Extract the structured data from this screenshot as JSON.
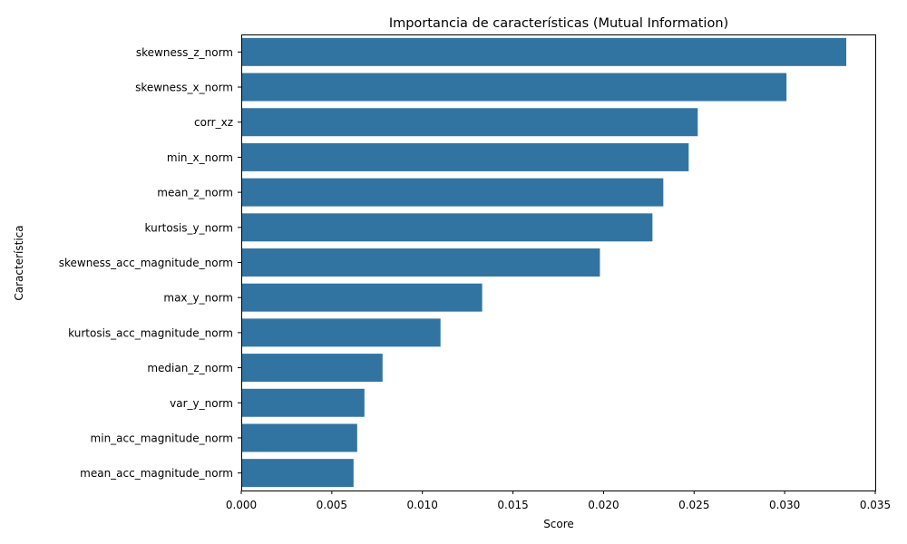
{
  "chart_data": {
    "type": "bar",
    "orientation": "horizontal",
    "title": "Importancia de características (Mutual Information)",
    "xlabel": "Score",
    "ylabel": "Característica",
    "xlim": [
      0,
      0.035
    ],
    "xticks": [
      "0.000",
      "0.005",
      "0.010",
      "0.015",
      "0.020",
      "0.025",
      "0.030",
      "0.035"
    ],
    "grid": false,
    "bar_color": "#3274a1",
    "categories": [
      "skewness_z_norm",
      "skewness_x_norm",
      "corr_xz",
      "min_x_norm",
      "mean_z_norm",
      "kurtosis_y_norm",
      "skewness_acc_magnitude_norm",
      "max_y_norm",
      "kurtosis_acc_magnitude_norm",
      "median_z_norm",
      "var_y_norm",
      "min_acc_magnitude_norm",
      "mean_acc_magnitude_norm"
    ],
    "values": [
      0.0334,
      0.0301,
      0.0252,
      0.0247,
      0.0233,
      0.0227,
      0.0198,
      0.0133,
      0.011,
      0.0078,
      0.0068,
      0.0064,
      0.0062
    ]
  }
}
